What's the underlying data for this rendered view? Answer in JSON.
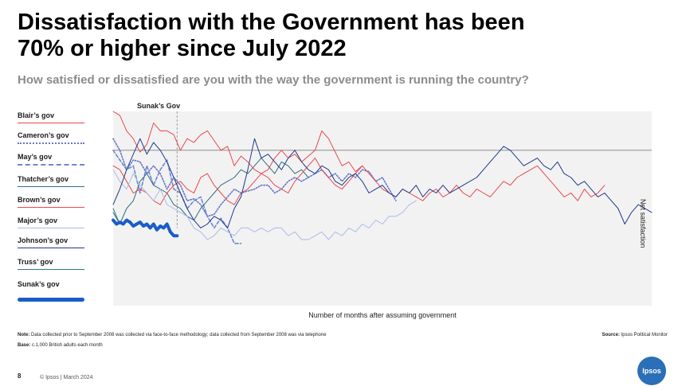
{
  "header": {
    "title_line1": "Dissatisfaction with the Government has been",
    "title_line2": "70% or higher since July 2022",
    "subtitle": "How satisfied or dissatisfied are you with the way the government is running the country?"
  },
  "chart_labels": {
    "marker_label": "Sunak’s Gov",
    "y_side_label": "Net satisfaction",
    "xlabel": "Number of months after assuming government"
  },
  "legend": [
    {
      "label": "Blair’s gov",
      "color": "#e8474f",
      "style": "solid"
    },
    {
      "label": "Cameron’s gov",
      "color": "#6677cc",
      "style": "dotted"
    },
    {
      "label": "May’s gov",
      "color": "#6f86d2",
      "style": "dashed"
    },
    {
      "label": "Thatcher’s gov",
      "color": "#2f6f7e",
      "style": "solid"
    },
    {
      "label": "Brown’s gov",
      "color": "#e8474f",
      "style": "solid"
    },
    {
      "label": "Major’s gov",
      "color": "#aabbe6",
      "style": "solid"
    },
    {
      "label": "Johnson’s gov",
      "color": "#1f3a8a",
      "style": "solid"
    },
    {
      "label": "Truss’ gov",
      "color": "#2f7a78",
      "style": "solid"
    },
    {
      "label": "Sunak’s gov",
      "color": "#1a5cc8",
      "style": "thick"
    }
  ],
  "chart_data": {
    "type": "line",
    "xlabel": "Number of months after assuming government",
    "ylabel": "Net satisfaction",
    "x_range": [
      0,
      160
    ],
    "y_range": [
      -80,
      20
    ],
    "reference_line_y": 0,
    "marker_x": 19,
    "series": [
      {
        "name": "Blair’s gov",
        "color": "#e8474f",
        "style": "solid",
        "x": [
          0,
          2,
          4,
          6,
          8,
          10,
          12,
          14,
          16,
          18,
          20,
          22,
          24,
          26,
          28,
          30,
          32,
          34,
          36,
          38,
          40,
          42,
          44,
          46,
          48,
          50,
          52,
          54,
          56,
          58,
          60,
          62,
          64,
          66,
          68,
          70,
          72,
          74
        ],
        "y": [
          20,
          18,
          10,
          6,
          -1,
          3,
          14,
          10,
          10,
          8,
          0,
          6,
          4,
          8,
          10,
          5,
          0,
          2,
          -8,
          -3,
          -6,
          -10,
          -12,
          -10,
          -4,
          0,
          -4,
          -2,
          -6,
          -3,
          0,
          10,
          6,
          -1,
          -8,
          -6,
          -11,
          -8
        ]
      },
      {
        "name": "Cameron’s gov",
        "color": "#6677cc",
        "style": "dotted",
        "x": [
          0,
          2,
          4,
          6,
          8,
          10,
          12,
          14,
          16,
          18,
          20,
          22,
          24,
          26,
          28,
          30,
          32,
          34,
          36,
          38,
          40,
          42,
          44,
          46,
          48,
          50,
          52,
          54,
          56,
          58,
          60,
          62,
          64,
          66,
          68,
          70,
          72,
          74,
          76,
          78,
          80,
          82,
          84
        ],
        "y": [
          6,
          0,
          -10,
          -5,
          -6,
          -12,
          -8,
          -12,
          -20,
          -14,
          -18,
          -26,
          -25,
          -28,
          -34,
          -33,
          -28,
          -24,
          -20,
          -22,
          -21,
          -20,
          -18,
          -18,
          -22,
          -20,
          -16,
          -14,
          -16,
          -14,
          -12,
          -10,
          -14,
          -12,
          -16,
          -12,
          -14,
          -10,
          -11,
          -16,
          -14,
          -20,
          -26
        ]
      },
      {
        "name": "May’s gov",
        "color": "#6f86d2",
        "style": "dashed",
        "x": [
          0,
          2,
          4,
          6,
          8,
          10,
          12,
          14,
          16,
          18,
          20,
          22,
          24,
          26,
          28,
          30,
          32,
          34,
          36,
          38
        ],
        "y": [
          0,
          -5,
          -10,
          -8,
          -22,
          -8,
          -18,
          -10,
          -5,
          -20,
          -22,
          -30,
          -26,
          -24,
          -34,
          -40,
          -35,
          -40,
          -48,
          -48
        ]
      },
      {
        "name": "Thatcher’s gov",
        "color": "#2f6f7e",
        "style": "solid",
        "x": [
          0,
          2,
          4,
          6,
          8,
          10,
          12,
          14,
          16,
          18,
          20,
          22,
          24,
          26,
          28,
          30,
          32,
          34,
          36,
          38,
          40,
          42,
          44,
          46,
          48,
          50,
          52,
          54,
          56,
          58
        ],
        "y": [
          -32,
          -38,
          -30,
          -26,
          -16,
          -12,
          -18,
          -20,
          -22,
          -28,
          -30,
          -34,
          -36,
          -30,
          -26,
          -22,
          -18,
          -16,
          -14,
          -10,
          -12,
          -8,
          -4,
          -8,
          -12,
          -6,
          -8,
          -12,
          -10,
          -14
        ]
      },
      {
        "name": "Brown’s gov",
        "color": "#e8474f",
        "style": "solid",
        "x": [
          0,
          2,
          4,
          6,
          8,
          10,
          12,
          14,
          16,
          18,
          20,
          22,
          24,
          26,
          28,
          30,
          32,
          34,
          36,
          38,
          40,
          42,
          44,
          46,
          48,
          50,
          52,
          54,
          56,
          58,
          60,
          62,
          64,
          66,
          68,
          70,
          72,
          74,
          76,
          78,
          80,
          82,
          84,
          86,
          88,
          90,
          92,
          94,
          96,
          98,
          100,
          102,
          104,
          106,
          108,
          110,
          112,
          114,
          116,
          118,
          120,
          122,
          124,
          126,
          128,
          130,
          132,
          134,
          136,
          138,
          140,
          142,
          144,
          146
        ],
        "y": [
          -8,
          -10,
          -16,
          -22,
          -20,
          -22,
          -26,
          -28,
          -22,
          -18,
          -16,
          -20,
          -22,
          -14,
          -12,
          -18,
          -22,
          -26,
          -28,
          -22,
          -20,
          -16,
          -12,
          -14,
          -18,
          -20,
          -22,
          -16,
          -12,
          -8,
          -4,
          -10,
          -14,
          -18,
          -20,
          -16,
          -12,
          -8,
          -12,
          -16,
          -20,
          -22,
          -24,
          -20,
          -22,
          -24,
          -26,
          -22,
          -20,
          -24,
          -22,
          -18,
          -22,
          -24,
          -20,
          -22,
          -24,
          -20,
          -16,
          -18,
          -14,
          -12,
          -10,
          -8,
          -12,
          -16,
          -20,
          -24,
          -22,
          -26,
          -20,
          -24,
          -22,
          -18
        ]
      },
      {
        "name": "Major’s gov",
        "color": "#aabbe6",
        "style": "solid",
        "x": [
          0,
          2,
          4,
          6,
          8,
          10,
          12,
          14,
          16,
          18,
          20,
          22,
          24,
          26,
          28,
          30,
          32,
          34,
          36,
          38,
          40,
          42,
          44,
          46,
          48,
          50,
          52,
          54,
          56,
          58,
          60,
          62,
          64,
          66,
          68,
          70,
          72,
          74,
          76,
          78,
          80,
          82,
          84,
          86,
          88,
          90
        ],
        "y": [
          -10,
          -16,
          -20,
          -12,
          -18,
          -22,
          -26,
          -20,
          -28,
          -30,
          -32,
          -34,
          -40,
          -42,
          -46,
          -44,
          -40,
          -42,
          -44,
          -40,
          -40,
          -42,
          -40,
          -42,
          -40,
          -40,
          -44,
          -42,
          -46,
          -46,
          -44,
          -42,
          -46,
          -42,
          -44,
          -40,
          -42,
          -38,
          -40,
          -36,
          -38,
          -34,
          -34,
          -32,
          -28,
          -26
        ]
      },
      {
        "name": "Johnson’s gov",
        "color": "#1f3a8a",
        "style": "solid",
        "x": [
          0,
          2,
          4,
          6,
          8,
          10,
          12,
          14,
          16,
          18,
          20,
          22,
          24,
          26,
          28,
          30,
          32,
          34,
          36,
          38,
          40,
          42,
          44,
          46,
          48,
          50,
          52,
          54,
          56,
          58,
          60,
          62,
          64,
          66,
          68,
          70,
          72,
          74,
          76,
          78,
          80,
          82,
          84,
          86,
          88,
          90,
          92,
          94,
          96,
          98,
          100,
          102,
          104,
          106,
          108,
          110,
          112,
          114,
          116,
          118,
          120,
          122,
          124,
          126,
          128,
          130,
          132,
          134,
          136,
          138,
          140,
          142,
          144,
          146,
          148,
          150,
          152,
          154,
          156,
          158,
          160
        ],
        "y": [
          -28,
          -20,
          -10,
          -2,
          6,
          -2,
          4,
          0,
          -6,
          -14,
          -22,
          -30,
          -36,
          -40,
          -38,
          -34,
          -36,
          -40,
          -30,
          -24,
          -10,
          6,
          -4,
          -2,
          -6,
          -10,
          -4,
          0,
          -6,
          -10,
          -12,
          -8,
          -10,
          -16,
          -18,
          -14,
          -12,
          -16,
          -22,
          -20,
          -18,
          -22,
          -24,
          -20,
          -22,
          -18,
          -24,
          -20,
          -22,
          -18,
          -22,
          -20,
          -18,
          -16,
          -14,
          -10,
          -6,
          -2,
          2,
          0,
          -4,
          -8,
          -6,
          -4,
          -8,
          -10,
          -6,
          -12,
          -14,
          -18,
          -16,
          -20,
          -24,
          -22,
          -26,
          -30,
          -38,
          -32,
          -28,
          -30,
          -32
        ]
      },
      {
        "name": "Truss’ gov",
        "color": "#2f7a78",
        "style": "solid",
        "x": [
          0,
          1,
          2
        ],
        "y": [
          -30,
          -34,
          -38
        ]
      },
      {
        "name": "Sunak’s gov",
        "color": "#1a5cc8",
        "style": "thick",
        "x": [
          0,
          1,
          2,
          3,
          4,
          5,
          6,
          7,
          8,
          9,
          10,
          11,
          12,
          13,
          14,
          15,
          16,
          17,
          18,
          19
        ],
        "y": [
          -36,
          -38,
          -37,
          -38,
          -36,
          -37,
          -39,
          -38,
          -37,
          -39,
          -38,
          -40,
          -38,
          -41,
          -39,
          -40,
          -38,
          -42,
          -44,
          -44
        ]
      }
    ]
  },
  "notes": {
    "note_label": "Note:",
    "note_text": " Data collected prior to September 2008 was collected via face-to-face methodology; data collected from September 2008 was via telephone",
    "base_label": "Base:",
    "base_text": " c.1,000 British adults each month",
    "source_label": "Source:",
    "source_text": " Ipsos Political Monitor"
  },
  "footer": {
    "page_number": "8",
    "copyright": "© Ipsos | March 2024",
    "logo_text": "Ipsos"
  }
}
